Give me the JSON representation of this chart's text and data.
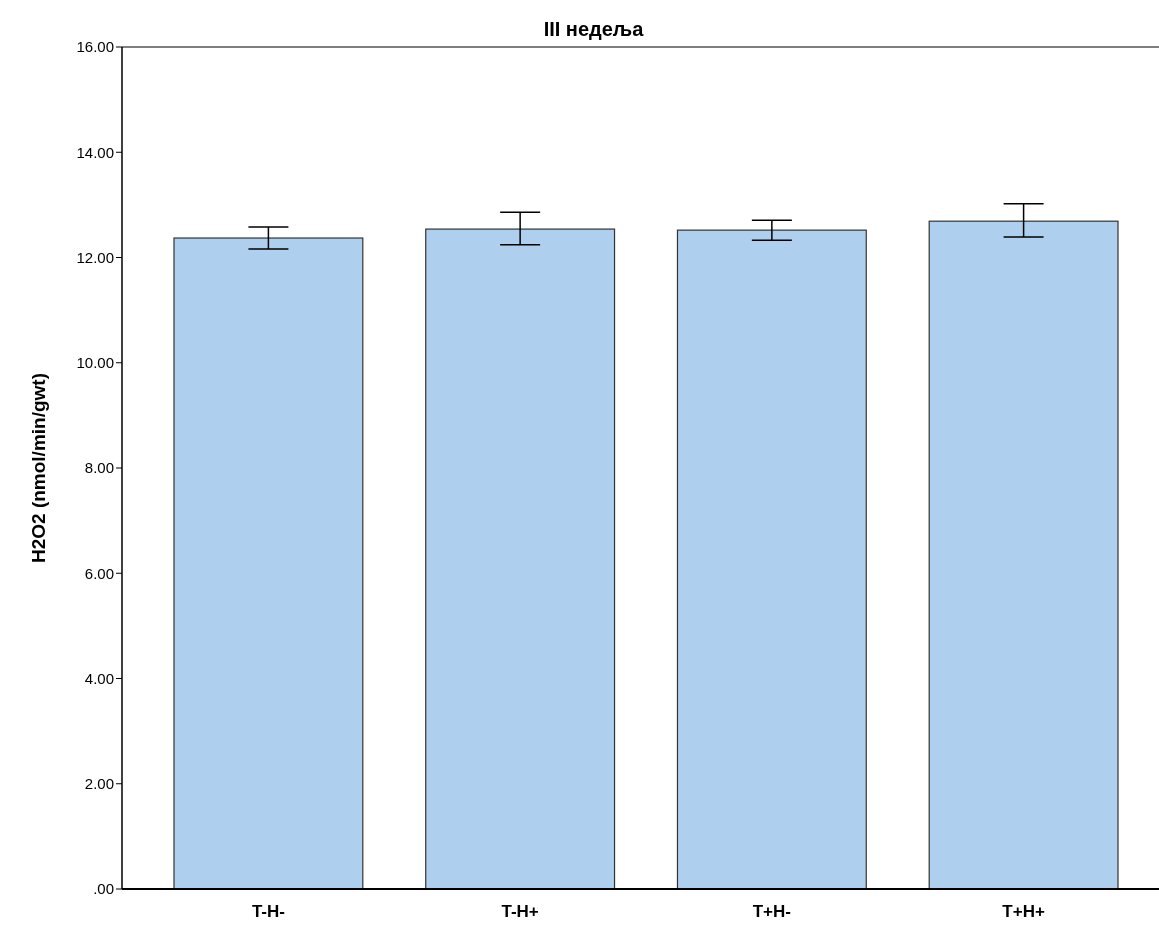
{
  "chart_data": {
    "type": "bar",
    "title": "III недеља",
    "ylabel": "H2O2 (nmol/min/gwt)",
    "categories": [
      "T-H-",
      "T-H+",
      "T+H-",
      "T+H+"
    ],
    "values": [
      12.37,
      12.54,
      12.52,
      12.69
    ],
    "errors": [
      [
        12.16,
        12.58
      ],
      [
        12.24,
        12.86
      ],
      [
        12.33,
        12.71
      ],
      [
        12.39,
        13.02
      ]
    ],
    "color": "#aecfee",
    "ylim": [
      0,
      16
    ],
    "yticks": [
      {
        "value": 0,
        "label": ".00"
      },
      {
        "value": 2,
        "label": "2.00"
      },
      {
        "value": 4,
        "label": "4.00"
      },
      {
        "value": 6,
        "label": "6.00"
      },
      {
        "value": 8,
        "label": "8.00"
      },
      {
        "value": 10,
        "label": "10.00"
      },
      {
        "value": 12,
        "label": "12.00"
      },
      {
        "value": 14,
        "label": "14.00"
      },
      {
        "value": 16,
        "label": "16.00"
      }
    ],
    "grid": false
  }
}
